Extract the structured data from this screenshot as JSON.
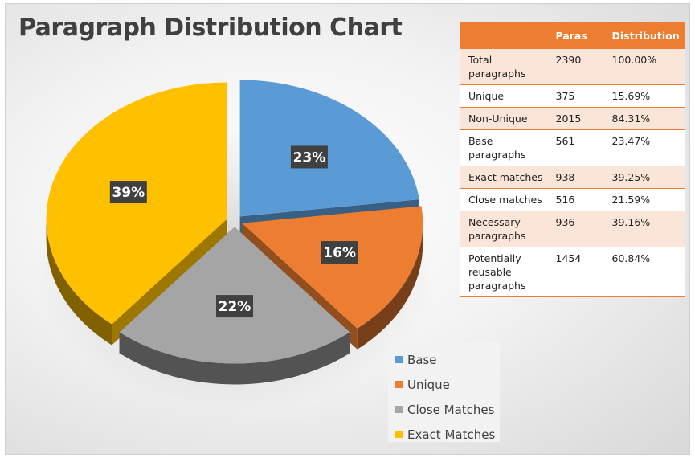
{
  "chart_data": {
    "type": "pie",
    "title": "Paragraph Distribution Chart",
    "slices": [
      {
        "name": "Base",
        "value": 23,
        "label": "23%",
        "color": "#5b9bd5"
      },
      {
        "name": "Unique",
        "value": 16,
        "label": "16%",
        "color": "#ed7d31"
      },
      {
        "name": "Close Matches",
        "value": 22,
        "label": "22%",
        "color": "#a5a5a5"
      },
      {
        "name": "Exact Matches",
        "value": 39,
        "label": "39%",
        "color": "#ffc000"
      }
    ],
    "legend_position": "bottom-right",
    "style": "3d exploded"
  },
  "table": {
    "headers": [
      "",
      "Paras",
      "Distribution"
    ],
    "rows": [
      [
        "Total paragraphs",
        "2390",
        "100.00%"
      ],
      [
        "Unique",
        "375",
        "15.69%"
      ],
      [
        "Non-Unique",
        "2015",
        "84.31%"
      ],
      [
        "Base paragraphs",
        "561",
        "23.47%"
      ],
      [
        "Exact matches",
        "938",
        "39.25%"
      ],
      [
        "Close matches",
        "516",
        "21.59%"
      ],
      [
        "Necessary paragraphs",
        "936",
        "39.16%"
      ],
      [
        "Potentially reusable paragraphs",
        "1454",
        "60.84%"
      ]
    ],
    "header_color": "#ed7d31",
    "band_color": "#fbe4d8"
  }
}
